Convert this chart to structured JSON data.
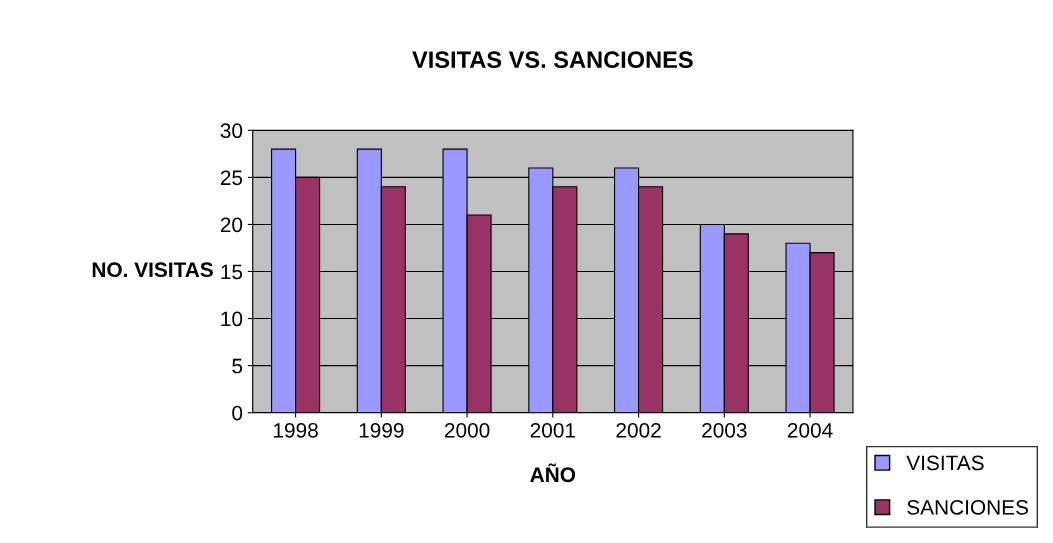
{
  "chart_data": {
    "type": "bar",
    "title": "VISITAS VS. SANCIONES",
    "xlabel": "AÑO",
    "ylabel": "NO. VISITAS",
    "categories": [
      "1998",
      "1999",
      "2000",
      "2001",
      "2002",
      "2003",
      "2004"
    ],
    "series": [
      {
        "name": "VISITAS",
        "color": "#9999ff",
        "values": [
          28,
          28,
          28,
          26,
          26,
          20,
          18
        ]
      },
      {
        "name": "SANCIONES",
        "color": "#993366",
        "values": [
          25,
          24,
          21,
          24,
          24,
          19,
          17
        ]
      }
    ],
    "ylim": [
      0,
      30
    ],
    "yticks": [
      0,
      5,
      10,
      15,
      20,
      25,
      30
    ],
    "grid": "y",
    "legend": "bottom right"
  }
}
